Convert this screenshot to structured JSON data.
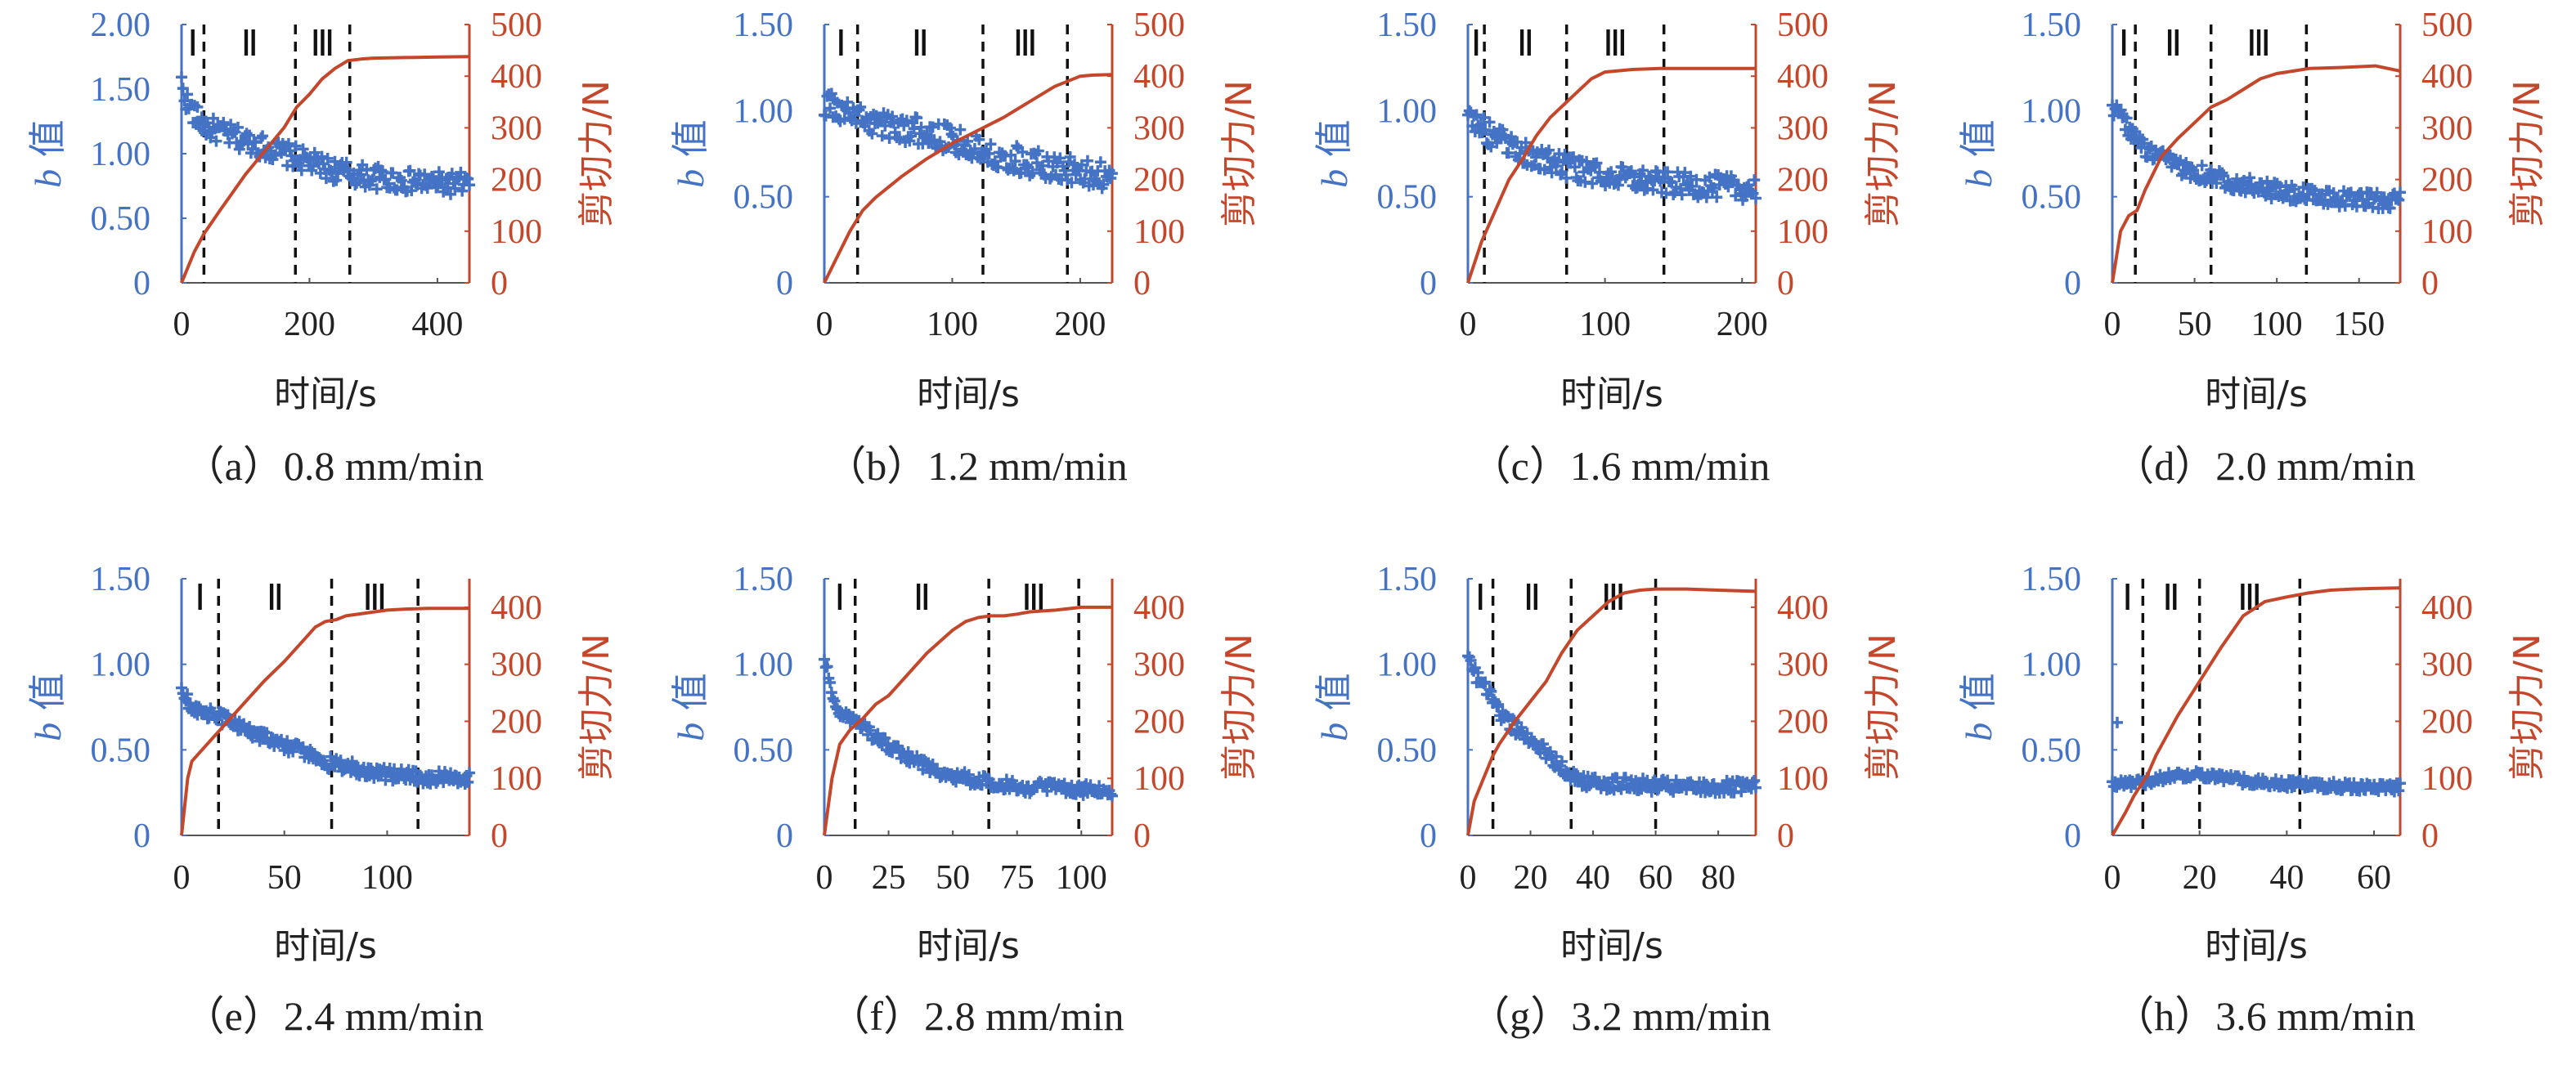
{
  "figure": {
    "left_axis_label": {
      "italic": "b",
      "rest": " 值"
    },
    "right_axis_label": "剪切力/N",
    "x_axis_label": "时间/s",
    "stage_labels": [
      "Ⅰ",
      "Ⅱ",
      "Ⅲ"
    ],
    "colors": {
      "b_value": "#4472C4",
      "shear_force": "#C5472B",
      "text": "#222222"
    }
  },
  "chart_data": [
    {
      "type": "scatter+line",
      "caption": "（a）0.8 mm/min",
      "xlim": [
        0,
        450
      ],
      "xticks": [
        0,
        200,
        400
      ],
      "ylim_left": [
        0,
        2.0
      ],
      "yticks_left": [
        "0",
        "0.50",
        "1.00",
        "1.50",
        "2.00"
      ],
      "ylim_right": [
        0,
        500
      ],
      "yticks_right": [
        "0",
        "100",
        "200",
        "300",
        "400",
        "500"
      ],
      "stage_boundaries": [
        35,
        178,
        263
      ],
      "b_value": {
        "x": [
          0,
          5,
          10,
          20,
          30,
          40,
          60,
          80,
          100,
          120,
          140,
          160,
          180,
          200,
          220,
          240,
          260,
          280,
          300,
          320,
          340,
          360,
          380,
          400,
          420,
          440,
          450
        ],
        "y": [
          1.55,
          1.45,
          1.38,
          1.3,
          1.25,
          1.2,
          1.17,
          1.13,
          1.1,
          1.07,
          1.03,
          1.0,
          0.97,
          0.93,
          0.9,
          0.87,
          0.85,
          0.83,
          0.82,
          0.8,
          0.79,
          0.78,
          0.78,
          0.77,
          0.77,
          0.77,
          0.77
        ],
        "noise": 0.09
      },
      "shear_force": {
        "x": [
          0,
          10,
          20,
          35,
          60,
          80,
          100,
          120,
          140,
          160,
          180,
          200,
          220,
          240,
          260,
          280,
          300,
          350,
          400,
          450
        ],
        "y": [
          0,
          30,
          60,
          95,
          140,
          175,
          210,
          240,
          270,
          300,
          340,
          365,
          395,
          415,
          430,
          433,
          435,
          436,
          437,
          438
        ]
      }
    },
    {
      "type": "scatter+line",
      "caption": "（b）1.2 mm/min",
      "xlim": [
        0,
        225
      ],
      "xticks": [
        0,
        100,
        200
      ],
      "ylim_left": [
        0,
        1.5
      ],
      "yticks_left": [
        "0",
        "0.50",
        "1.00",
        "1.50"
      ],
      "ylim_right": [
        0,
        500
      ],
      "yticks_right": [
        "0",
        "100",
        "200",
        "300",
        "400",
        "500"
      ],
      "stage_boundaries": [
        26,
        124,
        190
      ],
      "b_value": {
        "x": [
          0,
          10,
          20,
          30,
          40,
          60,
          80,
          100,
          120,
          140,
          160,
          180,
          200,
          225
        ],
        "y": [
          1.05,
          1.0,
          0.98,
          0.95,
          0.93,
          0.9,
          0.87,
          0.83,
          0.78,
          0.74,
          0.7,
          0.67,
          0.64,
          0.62
        ],
        "noise": 0.08
      },
      "shear_force": {
        "x": [
          0,
          10,
          20,
          30,
          40,
          60,
          80,
          100,
          120,
          140,
          160,
          180,
          200,
          210,
          225
        ],
        "y": [
          0,
          50,
          100,
          140,
          165,
          205,
          240,
          270,
          295,
          320,
          350,
          380,
          400,
          402,
          403
        ]
      }
    },
    {
      "type": "scatter+line",
      "caption": "（c）1.6 mm/min",
      "xlim": [
        0,
        210
      ],
      "xticks": [
        0,
        100,
        200
      ],
      "ylim_left": [
        0,
        1.5
      ],
      "yticks_left": [
        "0",
        "0.50",
        "1.00",
        "1.50"
      ],
      "ylim_right": [
        0,
        500
      ],
      "yticks_right": [
        "0",
        "100",
        "200",
        "300",
        "400",
        "500"
      ],
      "stage_boundaries": [
        12,
        72,
        143
      ],
      "b_value": {
        "x": [
          0,
          5,
          10,
          20,
          30,
          40,
          60,
          80,
          100,
          120,
          140,
          160,
          180,
          200,
          210
        ],
        "y": [
          1.0,
          0.95,
          0.9,
          0.84,
          0.8,
          0.75,
          0.7,
          0.66,
          0.62,
          0.6,
          0.58,
          0.57,
          0.56,
          0.55,
          0.55
        ],
        "noise": 0.07
      },
      "shear_force": {
        "x": [
          0,
          5,
          10,
          20,
          30,
          40,
          50,
          60,
          70,
          80,
          90,
          100,
          120,
          140,
          160,
          180,
          210
        ],
        "y": [
          0,
          40,
          80,
          140,
          200,
          240,
          285,
          320,
          345,
          370,
          395,
          408,
          413,
          415,
          415,
          415,
          415
        ]
      }
    },
    {
      "type": "scatter+line",
      "caption": "（d）2.0 mm/min",
      "xlim": [
        0,
        175
      ],
      "xticks": [
        0,
        50,
        100,
        150
      ],
      "ylim_left": [
        0,
        1.5
      ],
      "yticks_left": [
        "0",
        "0.50",
        "1.00",
        "1.50"
      ],
      "ylim_right": [
        0,
        500
      ],
      "yticks_right": [
        "0",
        "100",
        "200",
        "300",
        "400",
        "500"
      ],
      "stage_boundaries": [
        14,
        60,
        118
      ],
      "b_value": {
        "x": [
          0,
          5,
          10,
          15,
          20,
          30,
          40,
          60,
          80,
          100,
          120,
          140,
          160,
          175
        ],
        "y": [
          1.02,
          0.97,
          0.9,
          0.83,
          0.77,
          0.72,
          0.68,
          0.62,
          0.57,
          0.53,
          0.5,
          0.49,
          0.48,
          0.48
        ],
        "noise": 0.05
      },
      "shear_force": {
        "x": [
          0,
          5,
          10,
          15,
          20,
          30,
          40,
          50,
          60,
          70,
          80,
          90,
          100,
          110,
          120,
          140,
          160,
          175
        ],
        "y": [
          0,
          100,
          130,
          140,
          180,
          245,
          280,
          310,
          340,
          355,
          375,
          395,
          405,
          410,
          415,
          417,
          420,
          410
        ]
      }
    },
    {
      "type": "scatter+line",
      "caption": "（e）2.4 mm/min",
      "xlim": [
        0,
        140
      ],
      "xticks": [
        0,
        50,
        100
      ],
      "ylim_left": [
        0,
        1.5
      ],
      "yticks_left": [
        "0",
        "0.50",
        "1.00",
        "1.50"
      ],
      "ylim_right": [
        0,
        450
      ],
      "yticks_right": [
        "0",
        "100",
        "200",
        "300",
        "400"
      ],
      "stage_boundaries": [
        18,
        73,
        115
      ],
      "b_value": {
        "x": [
          0,
          5,
          10,
          20,
          30,
          40,
          50,
          60,
          70,
          80,
          90,
          100,
          110,
          120,
          130,
          140
        ],
        "y": [
          0.83,
          0.76,
          0.72,
          0.68,
          0.63,
          0.58,
          0.53,
          0.48,
          0.43,
          0.4,
          0.38,
          0.36,
          0.35,
          0.34,
          0.34,
          0.34
        ],
        "noise": 0.04
      },
      "shear_force": {
        "x": [
          0,
          3,
          5,
          10,
          20,
          30,
          40,
          50,
          60,
          65,
          70,
          75,
          80,
          90,
          100,
          110,
          120,
          130,
          140
        ],
        "y": [
          0,
          100,
          130,
          150,
          190,
          230,
          270,
          305,
          345,
          365,
          375,
          378,
          385,
          390,
          395,
          397,
          398,
          398,
          398
        ]
      }
    },
    {
      "type": "scatter+line",
      "caption": "（f）2.8 mm/min",
      "xlim": [
        0,
        112
      ],
      "xticks": [
        0,
        25,
        50,
        75,
        100
      ],
      "ylim_left": [
        0,
        1.5
      ],
      "yticks_left": [
        "0",
        "0.50",
        "1.00",
        "1.50"
      ],
      "ylim_right": [
        0,
        450
      ],
      "yticks_right": [
        "0",
        "100",
        "200",
        "300",
        "400"
      ],
      "stage_boundaries": [
        12,
        64,
        99
      ],
      "b_value": {
        "x": [
          0,
          3,
          6,
          10,
          15,
          20,
          30,
          40,
          50,
          60,
          70,
          80,
          90,
          100,
          112
        ],
        "y": [
          1.05,
          0.82,
          0.72,
          0.68,
          0.63,
          0.57,
          0.48,
          0.4,
          0.35,
          0.32,
          0.3,
          0.28,
          0.28,
          0.27,
          0.26
        ],
        "noise": 0.035
      },
      "shear_force": {
        "x": [
          0,
          3,
          6,
          10,
          15,
          20,
          25,
          30,
          40,
          50,
          55,
          60,
          65,
          70,
          75,
          80,
          90,
          100,
          112
        ],
        "y": [
          0,
          100,
          160,
          185,
          205,
          230,
          245,
          270,
          320,
          360,
          375,
          382,
          385,
          385,
          388,
          392,
          395,
          400,
          400
        ]
      }
    },
    {
      "type": "scatter+line",
      "caption": "（g）3.2 mm/min",
      "xlim": [
        0,
        92
      ],
      "xticks": [
        0,
        20,
        40,
        60,
        80
      ],
      "ylim_left": [
        0,
        1.5
      ],
      "yticks_left": [
        "0",
        "0.50",
        "1.00",
        "1.50"
      ],
      "ylim_right": [
        0,
        450
      ],
      "yticks_right": [
        "0",
        "100",
        "200",
        "300",
        "400"
      ],
      "stage_boundaries": [
        8,
        33,
        60
      ],
      "b_value": {
        "x": [
          0,
          2,
          5,
          8,
          10,
          15,
          20,
          25,
          30,
          35,
          40,
          50,
          60,
          70,
          80,
          92
        ],
        "y": [
          1.05,
          0.95,
          0.88,
          0.8,
          0.72,
          0.63,
          0.56,
          0.48,
          0.4,
          0.33,
          0.31,
          0.3,
          0.29,
          0.28,
          0.28,
          0.28
        ],
        "noise": 0.04
      },
      "shear_force": {
        "x": [
          0,
          2,
          5,
          8,
          10,
          15,
          20,
          25,
          30,
          35,
          40,
          45,
          50,
          55,
          60,
          70,
          80,
          92
        ],
        "y": [
          0,
          60,
          100,
          140,
          160,
          200,
          235,
          270,
          320,
          360,
          385,
          410,
          425,
          430,
          432,
          432,
          430,
          428
        ]
      }
    },
    {
      "type": "scatter+line",
      "caption": "（h）3.6 mm/min",
      "xlim": [
        0,
        66
      ],
      "xticks": [
        0,
        20,
        40,
        60
      ],
      "ylim_left": [
        0,
        1.5
      ],
      "yticks_left": [
        "0",
        "0.50",
        "1.00",
        "1.50"
      ],
      "ylim_right": [
        0,
        450
      ],
      "yticks_right": [
        "0",
        "100",
        "200",
        "300",
        "400"
      ],
      "stage_boundaries": [
        7,
        20,
        43
      ],
      "b_value": {
        "x": [
          0,
          5,
          10,
          15,
          20,
          25,
          30,
          40,
          50,
          60,
          66
        ],
        "y": [
          0.3,
          0.3,
          0.33,
          0.35,
          0.36,
          0.34,
          0.32,
          0.3,
          0.29,
          0.28,
          0.28
        ],
        "noise": 0.025,
        "outlier": [
          0,
          0.66
        ]
      },
      "shear_force": {
        "x": [
          0,
          3,
          5,
          8,
          10,
          15,
          20,
          25,
          30,
          35,
          40,
          45,
          50,
          55,
          60,
          66
        ],
        "y": [
          0,
          40,
          70,
          105,
          140,
          210,
          270,
          330,
          385,
          410,
          418,
          425,
          430,
          432,
          433,
          434
        ]
      }
    }
  ]
}
